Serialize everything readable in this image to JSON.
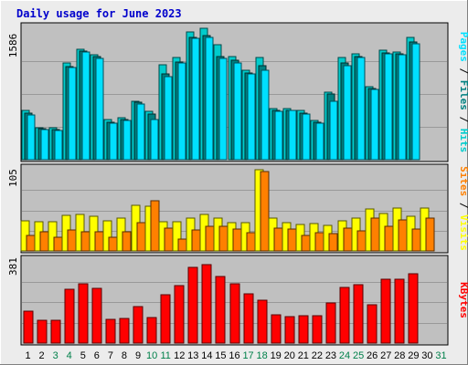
{
  "title": "Daily usage for June 2023",
  "colors": {
    "background": "#ececec",
    "plot_background": "#c0c0c0",
    "hits": "#00cccc",
    "files": "#008080",
    "pages": "#00e0ff",
    "visits": "#ffff00",
    "sites": "#ff8000",
    "kbytes": "#ff0000",
    "title": "#0000cc",
    "weekend_day": "#00804a"
  },
  "chart_data": [
    {
      "type": "bar",
      "panel": "hits",
      "label_parts": [
        {
          "text": "Pages",
          "color": "#00e0ff"
        },
        {
          "text": " / ",
          "color": "#000000"
        },
        {
          "text": "Files",
          "color": "#008080"
        },
        {
          "text": " / ",
          "color": "#000000"
        },
        {
          "text": "Hits",
          "color": "#00cccc"
        }
      ],
      "ymax_label": "1586",
      "ylim": [
        0,
        1586
      ],
      "grid": true,
      "categories": [
        "1",
        "2",
        "3",
        "4",
        "5",
        "6",
        "7",
        "8",
        "9",
        "10",
        "11",
        "12",
        "13",
        "14",
        "15",
        "16",
        "17",
        "18",
        "19",
        "20",
        "21",
        "22",
        "23",
        "24",
        "25",
        "26",
        "27",
        "28",
        "29",
        "30",
        "31"
      ],
      "series": [
        {
          "name": "Hits",
          "color": "#00cccc",
          "values": [
            590,
            390,
            380,
            1170,
            1330,
            1270,
            480,
            510,
            710,
            580,
            1150,
            1230,
            1540,
            1590,
            1390,
            1250,
            1080,
            1230,
            620,
            620,
            590,
            470,
            810,
            1230,
            1280,
            880,
            1320,
            1300,
            1480,
            null,
            null
          ]
        },
        {
          "name": "Files",
          "color": "#008080",
          "values": [
            560,
            370,
            360,
            1120,
            1310,
            1240,
            450,
            480,
            690,
            550,
            1030,
            1180,
            1480,
            1500,
            1240,
            1200,
            1050,
            1130,
            590,
            600,
            560,
            450,
            790,
            1170,
            1250,
            860,
            1290,
            1280,
            1420,
            null,
            null
          ]
        },
        {
          "name": "Pages",
          "color": "#00e0ff",
          "values": [
            540,
            360,
            350,
            1110,
            1300,
            1220,
            440,
            470,
            670,
            480,
            1000,
            1170,
            1470,
            1480,
            1220,
            1170,
            1030,
            1080,
            580,
            590,
            550,
            440,
            710,
            1130,
            1230,
            850,
            1280,
            1270,
            1400,
            null,
            null
          ]
        }
      ]
    },
    {
      "type": "bar",
      "panel": "visits",
      "label_parts": [
        {
          "text": "Sites",
          "color": "#ff8000"
        },
        {
          "text": " / ",
          "color": "#000000"
        },
        {
          "text": "Visits",
          "color": "#ffff00"
        }
      ],
      "ymax_label": "105",
      "ylim": [
        0,
        105
      ],
      "grid": true,
      "categories": [
        "1",
        "2",
        "3",
        "4",
        "5",
        "6",
        "7",
        "8",
        "9",
        "10",
        "11",
        "12",
        "13",
        "14",
        "15",
        "16",
        "17",
        "18",
        "19",
        "20",
        "21",
        "22",
        "23",
        "24",
        "25",
        "26",
        "27",
        "28",
        "29",
        "30",
        "31"
      ],
      "series": [
        {
          "name": "Visits",
          "color": "#ffff00",
          "values": [
            39,
            38,
            38,
            46,
            47,
            45,
            39,
            43,
            59,
            58,
            38,
            38,
            42,
            47,
            43,
            36,
            36,
            105,
            43,
            36,
            34,
            35,
            33,
            39,
            42,
            54,
            48,
            56,
            45,
            56,
            null
          ]
        },
        {
          "name": "Sites",
          "color": "#ff8000",
          "values": [
            20,
            25,
            18,
            27,
            25,
            25,
            18,
            25,
            36,
            65,
            30,
            15,
            27,
            32,
            32,
            28,
            24,
            103,
            30,
            28,
            20,
            24,
            22,
            30,
            26,
            42,
            32,
            40,
            28,
            42,
            null
          ]
        }
      ]
    },
    {
      "type": "bar",
      "panel": "kbytes",
      "label_parts": [
        {
          "text": "KBytes",
          "color": "#ff0000"
        }
      ],
      "ymax_label": "381",
      "ylim": [
        0,
        381
      ],
      "grid": true,
      "categories": [
        "1",
        "2",
        "3",
        "4",
        "5",
        "6",
        "7",
        "8",
        "9",
        "10",
        "11",
        "12",
        "13",
        "14",
        "15",
        "16",
        "17",
        "18",
        "19",
        "20",
        "21",
        "22",
        "23",
        "24",
        "25",
        "26",
        "27",
        "28",
        "29",
        "30",
        "31"
      ],
      "series": [
        {
          "name": "KBytes",
          "color": "#ff0000",
          "values": [
            150,
            105,
            105,
            250,
            275,
            255,
            110,
            113,
            170,
            118,
            226,
            265,
            350,
            366,
            310,
            275,
            230,
            201,
            132,
            123,
            125,
            127,
            187,
            260,
            272,
            178,
            298,
            296,
            322,
            null,
            null
          ]
        }
      ]
    }
  ],
  "days": [
    {
      "label": "1",
      "weekend": false
    },
    {
      "label": "2",
      "weekend": false
    },
    {
      "label": "3",
      "weekend": true
    },
    {
      "label": "4",
      "weekend": true
    },
    {
      "label": "5",
      "weekend": false
    },
    {
      "label": "6",
      "weekend": false
    },
    {
      "label": "7",
      "weekend": false
    },
    {
      "label": "8",
      "weekend": false
    },
    {
      "label": "9",
      "weekend": false
    },
    {
      "label": "10",
      "weekend": true
    },
    {
      "label": "11",
      "weekend": true
    },
    {
      "label": "12",
      "weekend": false
    },
    {
      "label": "13",
      "weekend": false
    },
    {
      "label": "14",
      "weekend": false
    },
    {
      "label": "15",
      "weekend": false
    },
    {
      "label": "16",
      "weekend": false
    },
    {
      "label": "17",
      "weekend": true
    },
    {
      "label": "18",
      "weekend": true
    },
    {
      "label": "19",
      "weekend": false
    },
    {
      "label": "20",
      "weekend": false
    },
    {
      "label": "21",
      "weekend": false
    },
    {
      "label": "22",
      "weekend": false
    },
    {
      "label": "23",
      "weekend": false
    },
    {
      "label": "24",
      "weekend": true
    },
    {
      "label": "25",
      "weekend": true
    },
    {
      "label": "26",
      "weekend": false
    },
    {
      "label": "27",
      "weekend": false
    },
    {
      "label": "28",
      "weekend": false
    },
    {
      "label": "29",
      "weekend": false
    },
    {
      "label": "30",
      "weekend": false
    },
    {
      "label": "31",
      "weekend": true
    }
  ]
}
